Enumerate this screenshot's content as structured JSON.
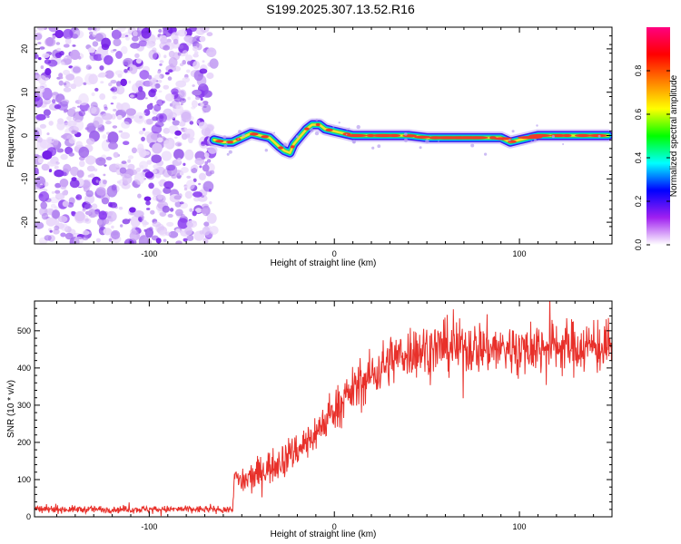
{
  "title": "S199.2025.307.13.52.R16",
  "colors": {
    "background": "#ffffff",
    "axis": "#000000",
    "snr_line": "#e8302a",
    "noise_purple": "#8a3cf0",
    "ridge_core": "#e8302a"
  },
  "chart_data": [
    {
      "type": "heatmap",
      "name": "spectrogram",
      "title": "",
      "xlabel": "Height of straight line (km)",
      "ylabel": "Frequency (Hz)",
      "xlim": [
        -162,
        150
      ],
      "ylim": [
        -25,
        25
      ],
      "xticks": [
        -100,
        0,
        100
      ],
      "xtick_labels": [
        "-100",
        "0",
        "100"
      ],
      "yticks": [
        -20,
        -10,
        0,
        10,
        20
      ],
      "ytick_labels": [
        "-20",
        "-10",
        "0",
        "10",
        "20"
      ],
      "noise_region_x": [
        -162,
        -65
      ],
      "ridge": {
        "x": [
          -65,
          -60,
          -55,
          -50,
          -45,
          -40,
          -35,
          -30,
          -27,
          -24,
          -22,
          -19,
          -15,
          -12,
          -8,
          -5,
          0,
          5,
          10,
          20,
          30,
          40,
          50,
          60,
          70,
          80,
          85,
          90,
          95,
          100,
          110,
          120,
          130,
          140,
          148
        ],
        "y": [
          -1.0,
          -1.5,
          -1.5,
          -0.5,
          0.5,
          0.0,
          -0.5,
          -2.5,
          -3.5,
          -4.0,
          -2.0,
          -0.5,
          1.5,
          2.5,
          2.5,
          1.5,
          1.0,
          0.5,
          0.0,
          0.0,
          0.0,
          0.0,
          -0.5,
          -0.5,
          -0.5,
          -0.5,
          -0.5,
          -0.5,
          -1.5,
          -1.0,
          0.0,
          0.0,
          0.0,
          0.0,
          0.0
        ]
      },
      "colorbar": {
        "label": "Normalized spectral amplitude",
        "range": [
          0.0,
          1.0
        ],
        "ticks": [
          0.0,
          0.2,
          0.4,
          0.6,
          0.8
        ],
        "tick_labels": [
          "0.0",
          "0.2",
          "0.4",
          "0.6",
          "0.8"
        ],
        "colormap": [
          "#ffffff",
          "#a020f0",
          "#0000ff",
          "#00ffff",
          "#00ff00",
          "#ffff00",
          "#ff8000",
          "#ff0000",
          "#ff0080"
        ]
      }
    },
    {
      "type": "line",
      "name": "snr",
      "title": "",
      "xlabel": "Height of straight line (km)",
      "ylabel": "SNR (10 * v/v)",
      "xlim": [
        -162,
        150
      ],
      "ylim": [
        0,
        580
      ],
      "xticks": [
        -100,
        0,
        100
      ],
      "xtick_labels": [
        "-100",
        "0",
        "100"
      ],
      "yticks": [
        0,
        100,
        200,
        300,
        400,
        500
      ],
      "ytick_labels": [
        "0",
        "100",
        "200",
        "300",
        "400",
        "500"
      ],
      "trend": {
        "x": [
          -162,
          -55,
          -54,
          -50,
          -40,
          -30,
          -20,
          -10,
          0,
          10,
          20,
          30,
          40,
          60,
          80,
          100,
          120,
          150
        ],
        "y": [
          20,
          20,
          110,
          90,
          120,
          150,
          180,
          225,
          290,
          340,
          380,
          420,
          445,
          455,
          455,
          450,
          460,
          455
        ]
      },
      "noise_amplitude": {
        "x": [
          -162,
          -55,
          -50,
          -20,
          0,
          20,
          40,
          150
        ],
        "y": [
          8,
          8,
          35,
          40,
          45,
          55,
          60,
          60
        ]
      }
    }
  ]
}
